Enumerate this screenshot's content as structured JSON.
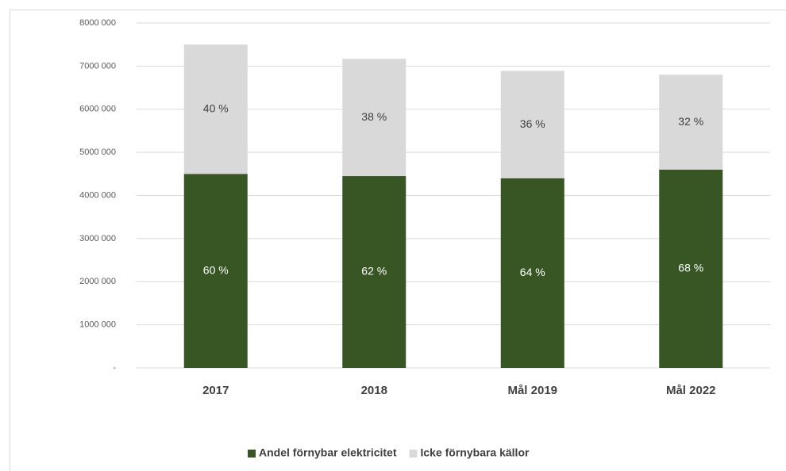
{
  "chart_data": {
    "type": "stacked_bar",
    "categories": [
      "2017",
      "2018",
      "Mål 2019",
      "Mål 2022"
    ],
    "series": [
      {
        "name": "Andel förnybar elektricitet",
        "color": "#375623",
        "values": [
          4500000,
          4450000,
          4400000,
          4600000
        ],
        "percent_labels": [
          "60 %",
          "62 %",
          "64 %",
          "68 %"
        ]
      },
      {
        "name": "Icke förnybara källor",
        "color": "#d9d9d9",
        "values": [
          3000000,
          2720000,
          2490000,
          2200000
        ],
        "percent_labels": [
          "40 %",
          "38 %",
          "36 %",
          "32 %"
        ]
      }
    ],
    "ylim": [
      0,
      8000000
    ],
    "yticks": [
      {
        "value": 0,
        "label": "-"
      },
      {
        "value": 1000000,
        "label": "1000 000"
      },
      {
        "value": 2000000,
        "label": "2000 000"
      },
      {
        "value": 3000000,
        "label": "3000 000"
      },
      {
        "value": 4000000,
        "label": "4000 000"
      },
      {
        "value": 5000000,
        "label": "5000 000"
      },
      {
        "value": 6000000,
        "label": "6000 000"
      },
      {
        "value": 7000000,
        "label": "7000 000"
      },
      {
        "value": 8000000,
        "label": "8000 000"
      }
    ],
    "grid": true,
    "legend": "bottom"
  }
}
